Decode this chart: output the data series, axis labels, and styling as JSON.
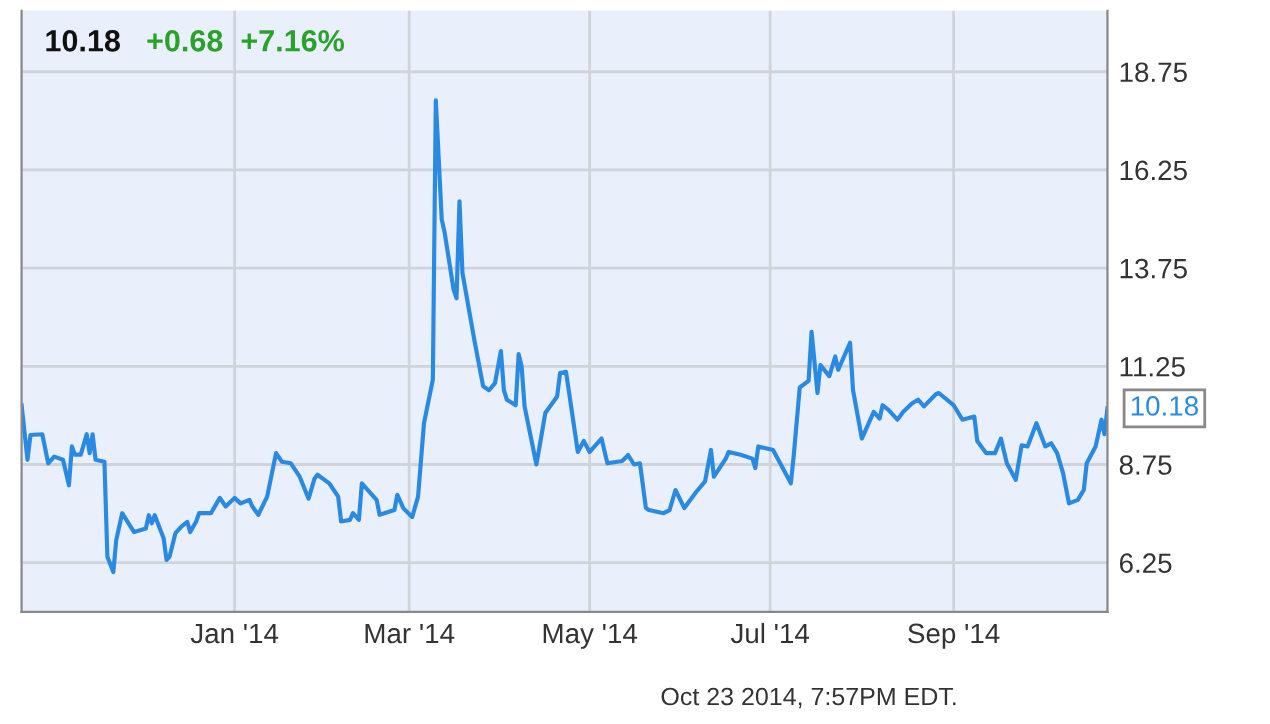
{
  "chart_data": {
    "type": "line",
    "title": "10.18",
    "subtitle": "+0.68  +7.16%",
    "x": [
      "2013-10-21",
      "2013-10-23",
      "2013-10-24",
      "2013-10-28",
      "2013-10-30",
      "2013-11-01",
      "2013-11-04",
      "2013-11-06",
      "2013-11-07",
      "2013-11-08",
      "2013-11-10",
      "2013-11-12",
      "2013-11-13",
      "2013-11-14",
      "2013-11-15",
      "2013-11-18",
      "2013-11-19",
      "2013-11-21",
      "2013-11-22",
      "2013-11-24",
      "2013-11-28",
      "2013-12-02",
      "2013-12-03",
      "2013-12-04",
      "2013-12-05",
      "2013-12-08",
      "2013-12-09",
      "2013-12-10",
      "2013-12-12",
      "2013-12-14",
      "2013-12-16",
      "2013-12-17",
      "2013-12-19",
      "2013-12-20",
      "2013-12-24",
      "2013-12-27",
      "2013-12-29",
      "2014-01-01",
      "2014-01-03",
      "2014-01-06",
      "2014-01-07",
      "2014-01-09",
      "2014-01-12",
      "2014-01-15",
      "2014-01-17",
      "2014-01-20",
      "2014-01-23",
      "2014-01-26",
      "2014-01-28",
      "2014-01-29",
      "2014-02-02",
      "2014-02-05",
      "2014-02-06",
      "2014-02-09",
      "2014-02-10",
      "2014-02-12",
      "2014-02-13",
      "2014-02-17",
      "2014-02-18",
      "2014-02-19",
      "2014-02-24",
      "2014-02-25",
      "2014-02-27",
      "2014-03-02",
      "2014-03-04",
      "2014-03-06",
      "2014-03-09",
      "2014-03-10",
      "2014-03-12",
      "2014-03-13",
      "2014-03-16",
      "2014-03-17",
      "2014-03-18",
      "2014-03-19",
      "2014-03-23",
      "2014-03-26",
      "2014-03-28",
      "2014-03-30",
      "2014-04-01",
      "2014-04-02",
      "2014-04-03",
      "2014-04-06",
      "2014-04-07",
      "2014-04-08",
      "2014-04-09",
      "2014-04-13",
      "2014-04-14",
      "2014-04-16",
      "2014-04-20",
      "2014-04-21",
      "2014-04-23",
      "2014-04-27",
      "2014-04-29",
      "2014-05-01",
      "2014-05-05",
      "2014-05-07",
      "2014-05-12",
      "2014-05-14",
      "2014-05-16",
      "2014-05-18",
      "2014-05-20",
      "2014-05-21",
      "2014-05-26",
      "2014-05-28",
      "2014-05-30",
      "2014-06-02",
      "2014-06-06",
      "2014-06-09",
      "2014-06-11",
      "2014-06-12",
      "2014-06-16",
      "2014-06-17",
      "2014-06-21",
      "2014-06-25",
      "2014-06-26",
      "2014-06-27",
      "2014-07-02",
      "2014-07-08",
      "2014-07-09",
      "2014-07-11",
      "2014-07-14",
      "2014-07-15",
      "2014-07-17",
      "2014-07-18",
      "2014-07-21",
      "2014-07-23",
      "2014-07-24",
      "2014-07-28",
      "2014-07-29",
      "2014-08-01",
      "2014-08-05",
      "2014-08-07",
      "2014-08-08",
      "2014-08-10",
      "2014-08-13",
      "2014-08-15",
      "2014-08-18",
      "2014-08-20",
      "2014-08-22",
      "2014-08-26",
      "2014-08-27",
      "2014-09-01",
      "2014-09-04",
      "2014-09-08",
      "2014-09-09",
      "2014-09-12",
      "2014-09-15",
      "2014-09-17",
      "2014-09-19",
      "2014-09-22",
      "2014-09-24",
      "2014-09-26",
      "2014-09-29",
      "2014-10-02",
      "2014-10-04",
      "2014-10-06",
      "2014-10-08",
      "2014-10-10",
      "2014-10-13",
      "2014-10-15",
      "2014-10-16",
      "2014-10-19",
      "2014-10-21",
      "2014-10-22",
      "2014-10-23"
    ],
    "series": [
      {
        "color": "#2a8ae2",
        "values": [
          10.26,
          8.87,
          9.5,
          9.52,
          8.78,
          8.95,
          8.87,
          8.22,
          9.21,
          9.0,
          9.0,
          9.52,
          9.04,
          9.52,
          8.87,
          8.82,
          6.4,
          6.01,
          6.83,
          7.51,
          7.03,
          7.12,
          7.46,
          7.25,
          7.46,
          6.87,
          6.32,
          6.4,
          7.0,
          7.17,
          7.29,
          7.03,
          7.3,
          7.51,
          7.51,
          7.9,
          7.68,
          7.9,
          7.76,
          7.85,
          7.68,
          7.47,
          7.93,
          9.04,
          8.82,
          8.78,
          8.44,
          7.88,
          8.39,
          8.49,
          8.27,
          7.93,
          7.3,
          7.34,
          7.51,
          7.34,
          8.27,
          7.93,
          7.85,
          7.47,
          7.59,
          7.98,
          7.64,
          7.41,
          7.93,
          9.8,
          10.91,
          18.02,
          14.99,
          14.65,
          13.21,
          12.98,
          15.45,
          13.63,
          11.93,
          10.74,
          10.64,
          10.82,
          11.64,
          10.65,
          10.4,
          10.26,
          11.56,
          11.25,
          10.23,
          8.75,
          9.18,
          10.06,
          10.48,
          11.08,
          11.11,
          9.07,
          9.35,
          9.07,
          9.41,
          8.78,
          8.84,
          8.99,
          8.75,
          8.78,
          7.64,
          7.59,
          7.51,
          7.59,
          8.1,
          7.64,
          8.05,
          8.32,
          9.12,
          8.44,
          8.9,
          9.07,
          9.0,
          8.9,
          8.66,
          9.21,
          9.12,
          8.27,
          9.0,
          10.71,
          10.88,
          12.13,
          10.57,
          11.28,
          11.0,
          11.5,
          11.16,
          11.85,
          10.65,
          9.41,
          10.09,
          9.92,
          10.26,
          10.14,
          9.89,
          10.09,
          10.31,
          10.4,
          10.23,
          10.54,
          10.57,
          10.26,
          9.89,
          9.97,
          9.35,
          9.04,
          9.04,
          9.41,
          8.78,
          8.36,
          9.24,
          9.21,
          9.8,
          9.21,
          9.29,
          9.04,
          8.53,
          7.76,
          7.85,
          8.1,
          8.78,
          9.21,
          9.89,
          9.52,
          10.18
        ]
      }
    ],
    "xlim": [
      "2013-10-21",
      "2014-10-23"
    ],
    "xticks": [
      {
        "value": "2014-01-01",
        "label": "Jan '14"
      },
      {
        "value": "2014-03-01",
        "label": "Mar '14"
      },
      {
        "value": "2014-05-01",
        "label": "May '14"
      },
      {
        "value": "2014-07-01",
        "label": "Jul '14"
      },
      {
        "value": "2014-09-01",
        "label": "Sep '14"
      }
    ],
    "ylim": [
      5.0,
      20.3
    ],
    "yticks": [
      6.25,
      8.75,
      11.25,
      13.75,
      16.25,
      18.75
    ],
    "grid": true,
    "legend": false,
    "annotations": [
      {
        "text": "10.18",
        "x": "2014-10-23",
        "y": 10.18
      },
      "Oct 23 2014, 7:57PM EDT."
    ]
  }
}
